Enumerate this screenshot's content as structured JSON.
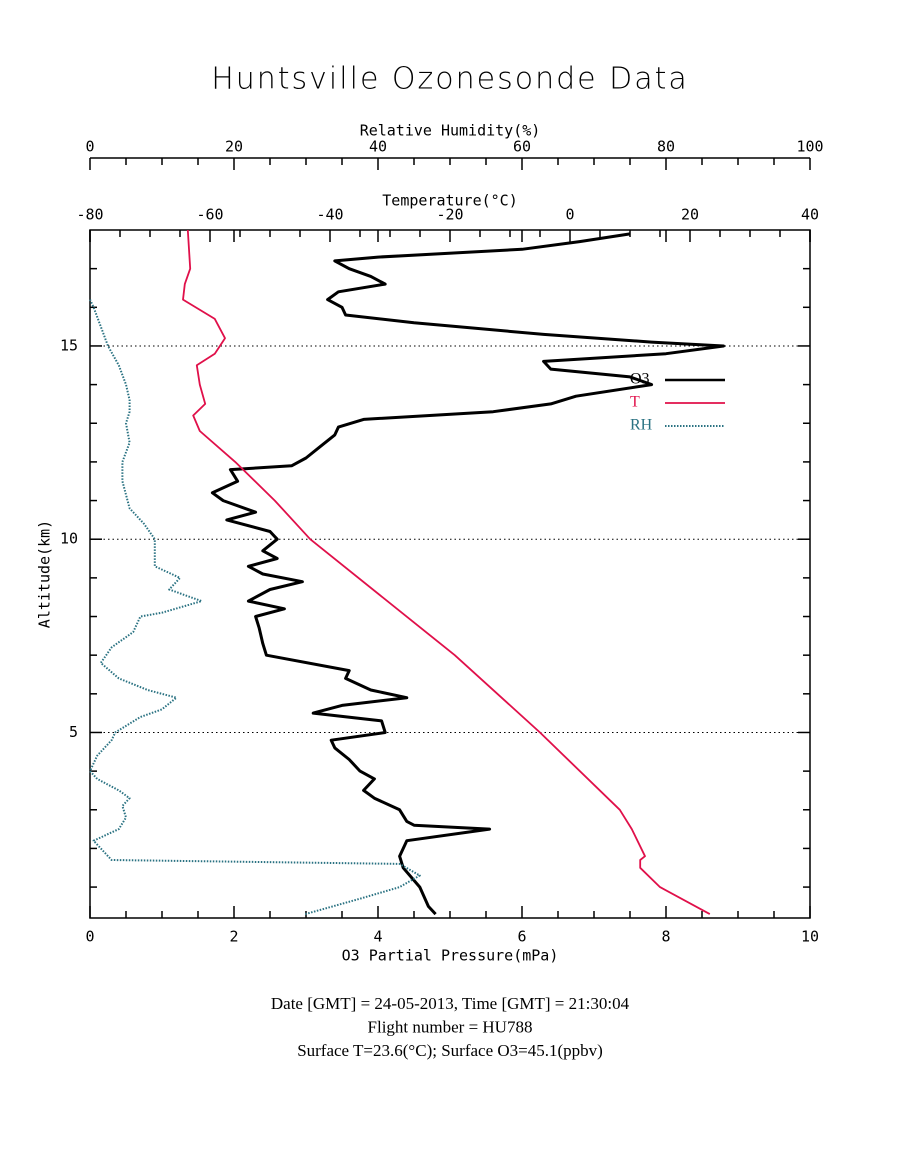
{
  "chart_data": {
    "type": "line",
    "title": "Huntsville Ozonesonde Data",
    "ylabel": "Altitude(km)",
    "ylim": [
      0.2,
      18
    ],
    "yticks": [
      5,
      10,
      15
    ],
    "yminorticks": [
      1,
      2,
      3,
      4,
      6,
      7,
      8,
      9,
      11,
      12,
      13,
      14,
      16,
      17
    ],
    "grid": true,
    "xlabel": "O3 Partial Pressure(mPa)",
    "xlim": [
      0,
      10
    ],
    "xticks": [
      0,
      2,
      4,
      6,
      8,
      10
    ],
    "xminorticks": [
      0.5,
      1,
      1.5,
      2.5,
      3,
      3.5,
      4.5,
      5,
      5.5,
      6.5,
      7,
      7.5,
      8.5,
      9,
      9.5
    ],
    "x2label": "Temperature(°C)",
    "x2lim": [
      -80,
      40
    ],
    "x2ticks": [
      -80,
      -60,
      -40,
      -20,
      0,
      20,
      40
    ],
    "x2minorticks": [
      -75,
      -70,
      -65,
      -55,
      -50,
      -45,
      -35,
      -30,
      -25,
      -15,
      -10,
      -5,
      5,
      10,
      15,
      25,
      30,
      35
    ],
    "x3label": "Relative Humidity(%)",
    "x3lim": [
      0,
      100
    ],
    "x3ticks": [
      0,
      20,
      40,
      60,
      80,
      100
    ],
    "x3minorticks": [
      5,
      10,
      15,
      25,
      30,
      35,
      45,
      50,
      55,
      65,
      70,
      75,
      85,
      90,
      95
    ],
    "legend_position": "upper right",
    "series": [
      {
        "name": "O3",
        "color": "#000000",
        "axis": "x",
        "x": [
          4.8,
          4.7,
          4.58,
          4.35,
          4.3,
          4.4,
          5.55,
          4.5,
          4.4,
          4.3,
          3.95,
          3.8,
          3.95,
          3.75,
          3.6,
          3.4,
          3.35,
          4.1,
          4.05,
          3.1,
          3.5,
          4.4,
          3.9,
          3.55,
          3.6,
          2.45,
          2.4,
          2.35,
          2.3,
          2.7,
          2.2,
          2.5,
          2.95,
          2.4,
          2.2,
          2.6,
          2.4,
          2.6,
          2.5,
          1.9,
          2.3,
          1.85,
          1.7,
          2.05,
          1.95,
          2.8,
          3.0,
          3.2,
          3.4,
          3.45,
          3.8,
          5.6,
          6.4,
          6.75,
          7.8,
          7.5,
          6.4,
          6.3,
          8.0,
          8.8,
          7.8,
          6.3,
          4.5,
          3.55,
          3.5,
          3.3,
          3.45,
          4.1,
          3.9,
          3.6,
          3.4,
          4.0,
          6.0,
          6.8,
          7.5
        ],
        "values": [
          0.3,
          0.5,
          1.0,
          1.5,
          1.8,
          2.2,
          2.5,
          2.6,
          2.7,
          3.0,
          3.3,
          3.5,
          3.8,
          4.0,
          4.3,
          4.6,
          4.8,
          5.0,
          5.3,
          5.5,
          5.7,
          5.9,
          6.1,
          6.4,
          6.6,
          7.0,
          7.3,
          7.7,
          8.0,
          8.2,
          8.4,
          8.7,
          8.9,
          9.1,
          9.3,
          9.5,
          9.7,
          10.0,
          10.2,
          10.5,
          10.7,
          11.0,
          11.2,
          11.5,
          11.8,
          11.9,
          12.1,
          12.4,
          12.7,
          12.9,
          13.1,
          13.3,
          13.5,
          13.7,
          14.0,
          14.2,
          14.4,
          14.6,
          14.8,
          15.0,
          15.1,
          15.3,
          15.6,
          15.8,
          16.0,
          16.2,
          16.4,
          16.6,
          16.8,
          17.0,
          17.2,
          17.3,
          17.5,
          17.7,
          17.9
        ]
      },
      {
        "name": "T",
        "color": "#e0104a",
        "axis": "x2",
        "x": [
          23.3,
          15,
          11.7,
          11.7,
          12.5,
          10.3,
          8.3,
          -5,
          -19.2,
          -43.3,
          -49.2,
          -55.8,
          -61.7,
          -62.8,
          -60.8,
          -61.7,
          -62.2,
          -59.2,
          -57.5,
          -59.2,
          -64.5,
          -64.2,
          -63.3,
          -63.5,
          -63.7
        ],
        "values": [
          0.3,
          1.0,
          1.5,
          1.7,
          1.8,
          2.5,
          3.0,
          5.0,
          7.0,
          10.0,
          11.0,
          12.0,
          12.8,
          13.2,
          13.5,
          14.0,
          14.5,
          14.8,
          15.2,
          15.7,
          16.2,
          16.6,
          17.0,
          17.5,
          18.0
        ]
      },
      {
        "name": "RH",
        "color": "#2a7282",
        "axis": "x3",
        "x": [
          29.9,
          37.5,
          43,
          45.8,
          43,
          3,
          2,
          0.5,
          4,
          5,
          4.5,
          5.5,
          4,
          1,
          0,
          1,
          3,
          3.5,
          7,
          10,
          12,
          8,
          4,
          1.5,
          3,
          6,
          7,
          10,
          15.5,
          11,
          12.5,
          9,
          9,
          9,
          7.5,
          5.5,
          4.5,
          4.5,
          5.5,
          5,
          5.5,
          5.5,
          5,
          4,
          2.5,
          1.5,
          0.5,
          0
        ],
        "values": [
          0.3,
          0.7,
          1.0,
          1.3,
          1.6,
          1.7,
          1.9,
          2.2,
          2.5,
          2.8,
          3.1,
          3.3,
          3.5,
          3.8,
          4.0,
          4.4,
          4.8,
          5.0,
          5.4,
          5.6,
          5.9,
          6.1,
          6.4,
          6.8,
          7.2,
          7.6,
          8.0,
          8.1,
          8.4,
          8.7,
          9.0,
          9.3,
          9.8,
          10.0,
          10.4,
          10.8,
          11.5,
          12.0,
          12.5,
          13.0,
          13.3,
          13.6,
          14.0,
          14.5,
          15.0,
          15.5,
          16.0,
          16.2
        ]
      }
    ],
    "notes": [
      "Date [GMT] = 24-05-2013,  Time [GMT] = 21:30:04",
      "Flight number = HU788",
      "Surface T=23.6(°C); Surface O3=45.1(ppbv)"
    ]
  }
}
